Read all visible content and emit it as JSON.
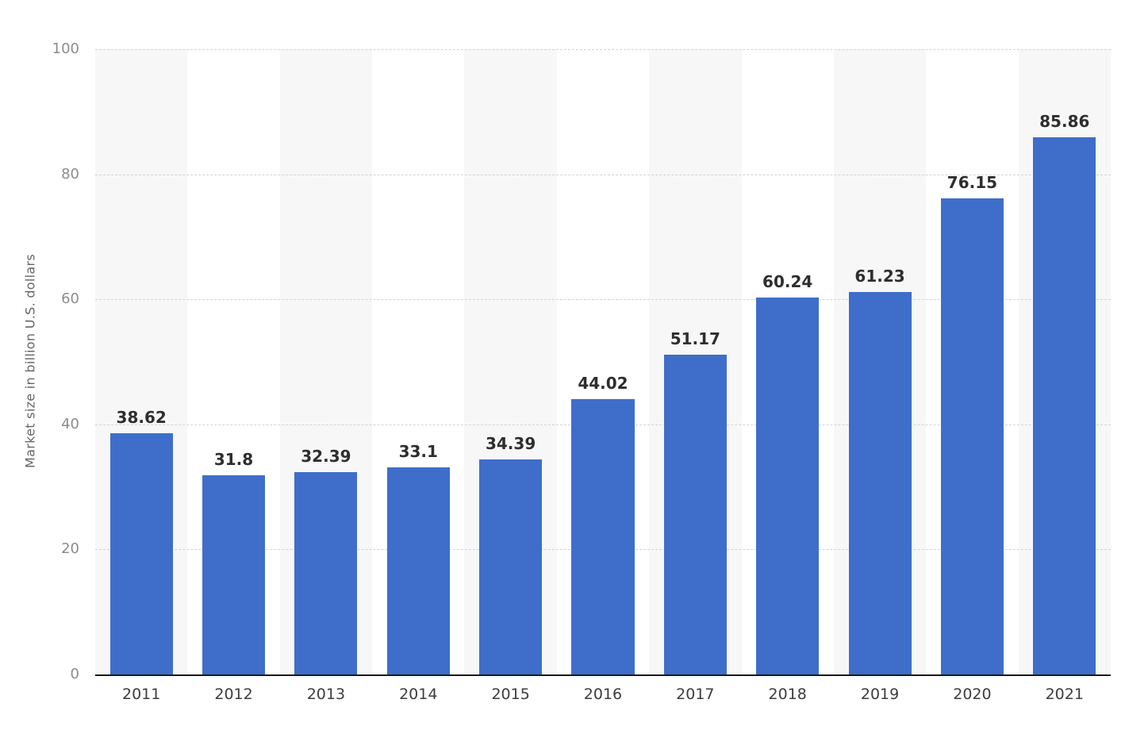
{
  "chart_data": {
    "type": "bar",
    "title": "",
    "categories": [
      "2011",
      "2012",
      "2013",
      "2014",
      "2015",
      "2016",
      "2017",
      "2018",
      "2019",
      "2020",
      "2021"
    ],
    "values": [
      38.62,
      31.8,
      32.39,
      33.1,
      34.39,
      44.02,
      51.17,
      60.24,
      61.23,
      76.15,
      85.86
    ],
    "value_labels": [
      "38.62",
      "31.8",
      "32.39",
      "33.1",
      "34.39",
      "44.02",
      "51.17",
      "60.24",
      "61.23",
      "76.15",
      "85.86"
    ],
    "xlabel": "",
    "ylabel": "Market size in billion U.S. dollars",
    "ylim": [
      0,
      100
    ],
    "yticks": [
      0,
      20,
      40,
      60,
      80,
      100
    ],
    "grid": true,
    "legend": "none",
    "bar_color": "#3e6ec9",
    "value_label_color": "#2e2e2e",
    "x_tick_color": "#3d3d3d",
    "y_tick_color": "#8c8c8c",
    "stripe_color": "#f7f7f7",
    "gridline_color": "#d4d4d4",
    "axis_color": "#1a1a1a"
  }
}
